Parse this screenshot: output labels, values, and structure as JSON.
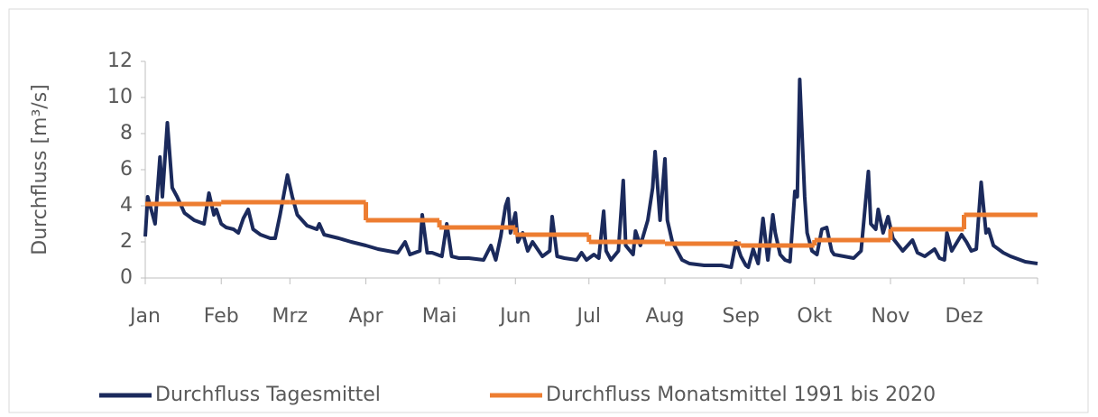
{
  "chart_data": {
    "type": "line",
    "y_label": "Durchfluss [m³/s]",
    "xlim": [
      1,
      365
    ],
    "xticks": [
      {
        "value": 1,
        "label": "Jan"
      },
      {
        "value": 32,
        "label": "Feb"
      },
      {
        "value": 60,
        "label": "Mrz"
      },
      {
        "value": 91,
        "label": "Apr"
      },
      {
        "value": 121,
        "label": "Mai"
      },
      {
        "value": 152,
        "label": "Jun"
      },
      {
        "value": 182,
        "label": "Jul"
      },
      {
        "value": 213,
        "label": "Aug"
      },
      {
        "value": 244,
        "label": "Sep"
      },
      {
        "value": 274,
        "label": "Okt"
      },
      {
        "value": 305,
        "label": "Nov"
      },
      {
        "value": 335,
        "label": "Dez"
      }
    ],
    "ylim": [
      0,
      12
    ],
    "yticks": [
      0,
      2,
      4,
      6,
      8,
      10,
      12
    ],
    "grid": false,
    "legend": "bottom",
    "series": [
      {
        "name": "Durchfluss Tagesmittel",
        "color": "#1b2a5c",
        "x": [
          1,
          2,
          5,
          7,
          8,
          10,
          12,
          14,
          17,
          21,
          25,
          27,
          29,
          30,
          32,
          34,
          37,
          39,
          41,
          43,
          45,
          48,
          52,
          54,
          56,
          59,
          61,
          63,
          67,
          71,
          72,
          74,
          80,
          85,
          91,
          96,
          104,
          107,
          109,
          113,
          114,
          116,
          118,
          122,
          124,
          126,
          129,
          133,
          139,
          142,
          144,
          146,
          148,
          149,
          150,
          152,
          153,
          155,
          157,
          159,
          163,
          166,
          167,
          169,
          172,
          177,
          179,
          181,
          184,
          186,
          188,
          189,
          191,
          194,
          196,
          197,
          200,
          201,
          203,
          206,
          208,
          209,
          211,
          213,
          214,
          216,
          218,
          220,
          223,
          229,
          236,
          240,
          242,
          244,
          246,
          247,
          249,
          251,
          253,
          255,
          257,
          258,
          260,
          262,
          264,
          266,
          267,
          268,
          270,
          271,
          273,
          275,
          277,
          279,
          281,
          282,
          286,
          290,
          293,
          296,
          297,
          299,
          300,
          302,
          304,
          306,
          310,
          314,
          316,
          319,
          323,
          325,
          327,
          328,
          330,
          334,
          336,
          338,
          340,
          342,
          344,
          345,
          347,
          351,
          354,
          360,
          365
        ],
        "values": [
          2.3,
          4.5,
          3,
          6.7,
          4.5,
          8.6,
          5,
          4.5,
          3.6,
          3.2,
          3,
          4.7,
          3.5,
          3.8,
          3,
          2.8,
          2.7,
          2.5,
          3.3,
          3.8,
          2.7,
          2.4,
          2.2,
          2.2,
          3.5,
          5.7,
          4.5,
          3.5,
          2.9,
          2.7,
          3,
          2.4,
          2.2,
          2,
          1.8,
          1.6,
          1.4,
          2,
          1.3,
          1.5,
          3.5,
          1.4,
          1.4,
          1.2,
          3,
          1.2,
          1.1,
          1.1,
          1,
          1.8,
          1,
          2.3,
          4,
          4.4,
          2.5,
          3.6,
          2,
          2.5,
          1.5,
          2,
          1.2,
          1.5,
          3.4,
          1.2,
          1.1,
          1,
          1.4,
          1,
          1.3,
          1.1,
          3.7,
          1.5,
          1,
          1.5,
          5.4,
          1.8,
          1.3,
          2.6,
          1.8,
          3.2,
          5,
          7,
          3.2,
          6.6,
          3.2,
          2,
          1.5,
          1,
          0.8,
          0.7,
          0.7,
          0.6,
          2,
          1.2,
          0.7,
          0.6,
          1.6,
          0.8,
          3.3,
          1,
          3.5,
          2.5,
          1.3,
          1,
          0.9,
          4.8,
          4.5,
          11,
          4.5,
          2.5,
          1.5,
          1.3,
          2.7,
          2.8,
          1.5,
          1.3,
          1.2,
          1.1,
          1.5,
          5.9,
          3,
          2.7,
          3.8,
          2.5,
          3.4,
          2.2,
          1.5,
          2.1,
          1.4,
          1.2,
          1.6,
          1.1,
          1,
          2.5,
          1.5,
          2.4,
          2,
          1.5,
          1.6,
          5.3,
          2.5,
          2.7,
          1.8,
          1.4,
          1.2,
          0.9,
          0.8
        ]
      },
      {
        "name": "Durchfluss Monatsmittel 1991 bis 2020",
        "color": "#ed7d31",
        "step": true,
        "x": [
          1,
          32,
          60,
          91,
          121,
          152,
          182,
          213,
          244,
          274,
          305,
          335
        ],
        "values": [
          4.1,
          4.2,
          4.2,
          3.2,
          2.8,
          2.4,
          2.0,
          1.9,
          1.8,
          2.1,
          2.7,
          3.5
        ]
      }
    ]
  }
}
